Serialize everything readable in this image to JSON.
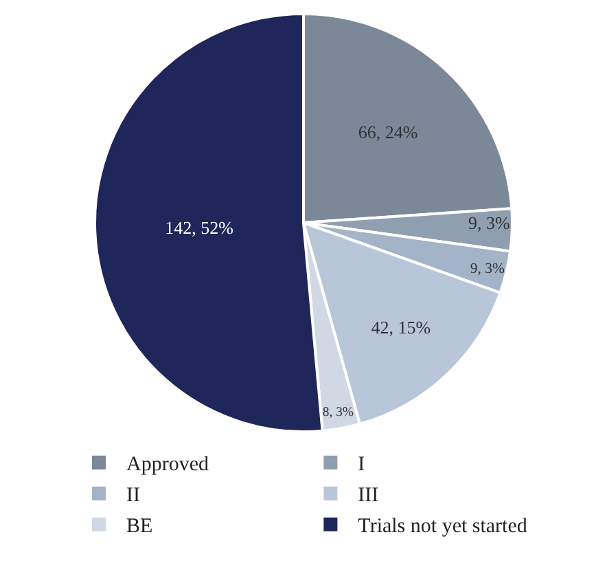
{
  "chart_data": {
    "type": "pie",
    "categories": [
      "Approved",
      "I",
      "II",
      "III",
      "BE",
      "Trials not yet started"
    ],
    "values": [
      66,
      9,
      9,
      42,
      8,
      142
    ],
    "colors": [
      "#7b8897",
      "#909fb0",
      "#a3b3c8",
      "#b7c6d8",
      "#cfd8e3",
      "#1f2659"
    ],
    "value_labels": [
      "66, 24%",
      "9, 3%",
      "9, 3%",
      "42, 15%",
      "8, 3%",
      "142, 52%"
    ],
    "legend": "bottom"
  }
}
